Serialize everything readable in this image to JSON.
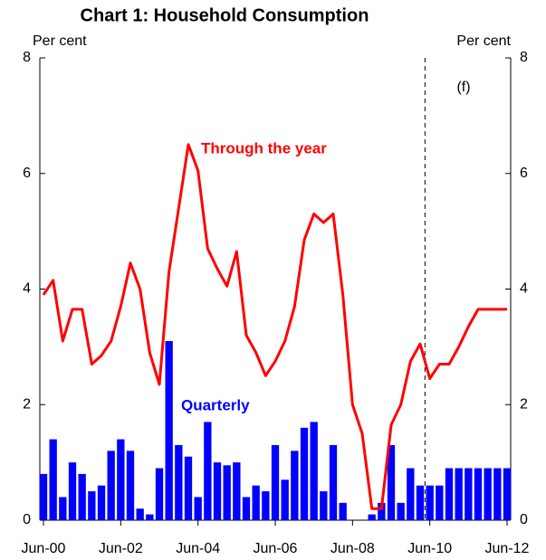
{
  "chart_data": {
    "type": "bar_line",
    "title": "Chart 1: Household Consumption",
    "y_label": "Per cent",
    "y2_label": "Per cent",
    "annotation": "(f)",
    "categories": [
      "Jun-00",
      null,
      null,
      null,
      null,
      null,
      null,
      null,
      "Jun-02",
      null,
      null,
      null,
      null,
      null,
      null,
      null,
      "Jun-04",
      null,
      null,
      null,
      null,
      null,
      null,
      null,
      "Jun-06",
      null,
      null,
      null,
      null,
      null,
      null,
      null,
      "Jun-08",
      null,
      null,
      null,
      null,
      null,
      null,
      null,
      "Jun-10",
      null,
      null,
      null,
      null,
      null,
      null,
      null,
      "Jun-12"
    ],
    "series": [
      {
        "name": "Quarterly",
        "type": "bar",
        "color": "#0000ff",
        "values": [
          0.8,
          1.4,
          0.4,
          1.0,
          0.8,
          0.5,
          0.6,
          1.2,
          1.4,
          1.2,
          0.2,
          0.1,
          0.9,
          3.1,
          1.3,
          1.1,
          0.4,
          1.7,
          1.0,
          0.95,
          1.0,
          0.4,
          0.6,
          0.5,
          1.3,
          0.7,
          1.2,
          1.6,
          1.7,
          0.5,
          1.3,
          0.3,
          0.0,
          0.0,
          0.1,
          0.3,
          1.3,
          0.3,
          0.9,
          0.6,
          0.6,
          0.6,
          0.9,
          0.9,
          0.9,
          0.9,
          0.9,
          0.9,
          0.9
        ]
      },
      {
        "name": "Through the year",
        "type": "line",
        "color": "#ff0000",
        "values": [
          3.9,
          4.15,
          3.1,
          3.65,
          3.65,
          2.7,
          2.85,
          3.1,
          3.7,
          4.45,
          4.0,
          2.9,
          2.35,
          4.3,
          5.4,
          6.5,
          6.05,
          4.7,
          4.35,
          4.05,
          4.65,
          3.2,
          2.9,
          2.5,
          2.75,
          3.1,
          3.7,
          4.85,
          5.3,
          5.15,
          5.3,
          3.9,
          2.0,
          1.5,
          0.2,
          0.2,
          1.65,
          2.0,
          2.75,
          3.05,
          2.45,
          2.7,
          2.7,
          3.0,
          3.35,
          3.65,
          3.65,
          3.65,
          3.65
        ]
      }
    ],
    "ylim": [
      0,
      8
    ],
    "yticks": [
      0,
      2,
      4,
      6,
      8
    ],
    "y2lim": [
      0,
      8
    ],
    "y2ticks": [
      0,
      2,
      4,
      6,
      8
    ]
  }
}
